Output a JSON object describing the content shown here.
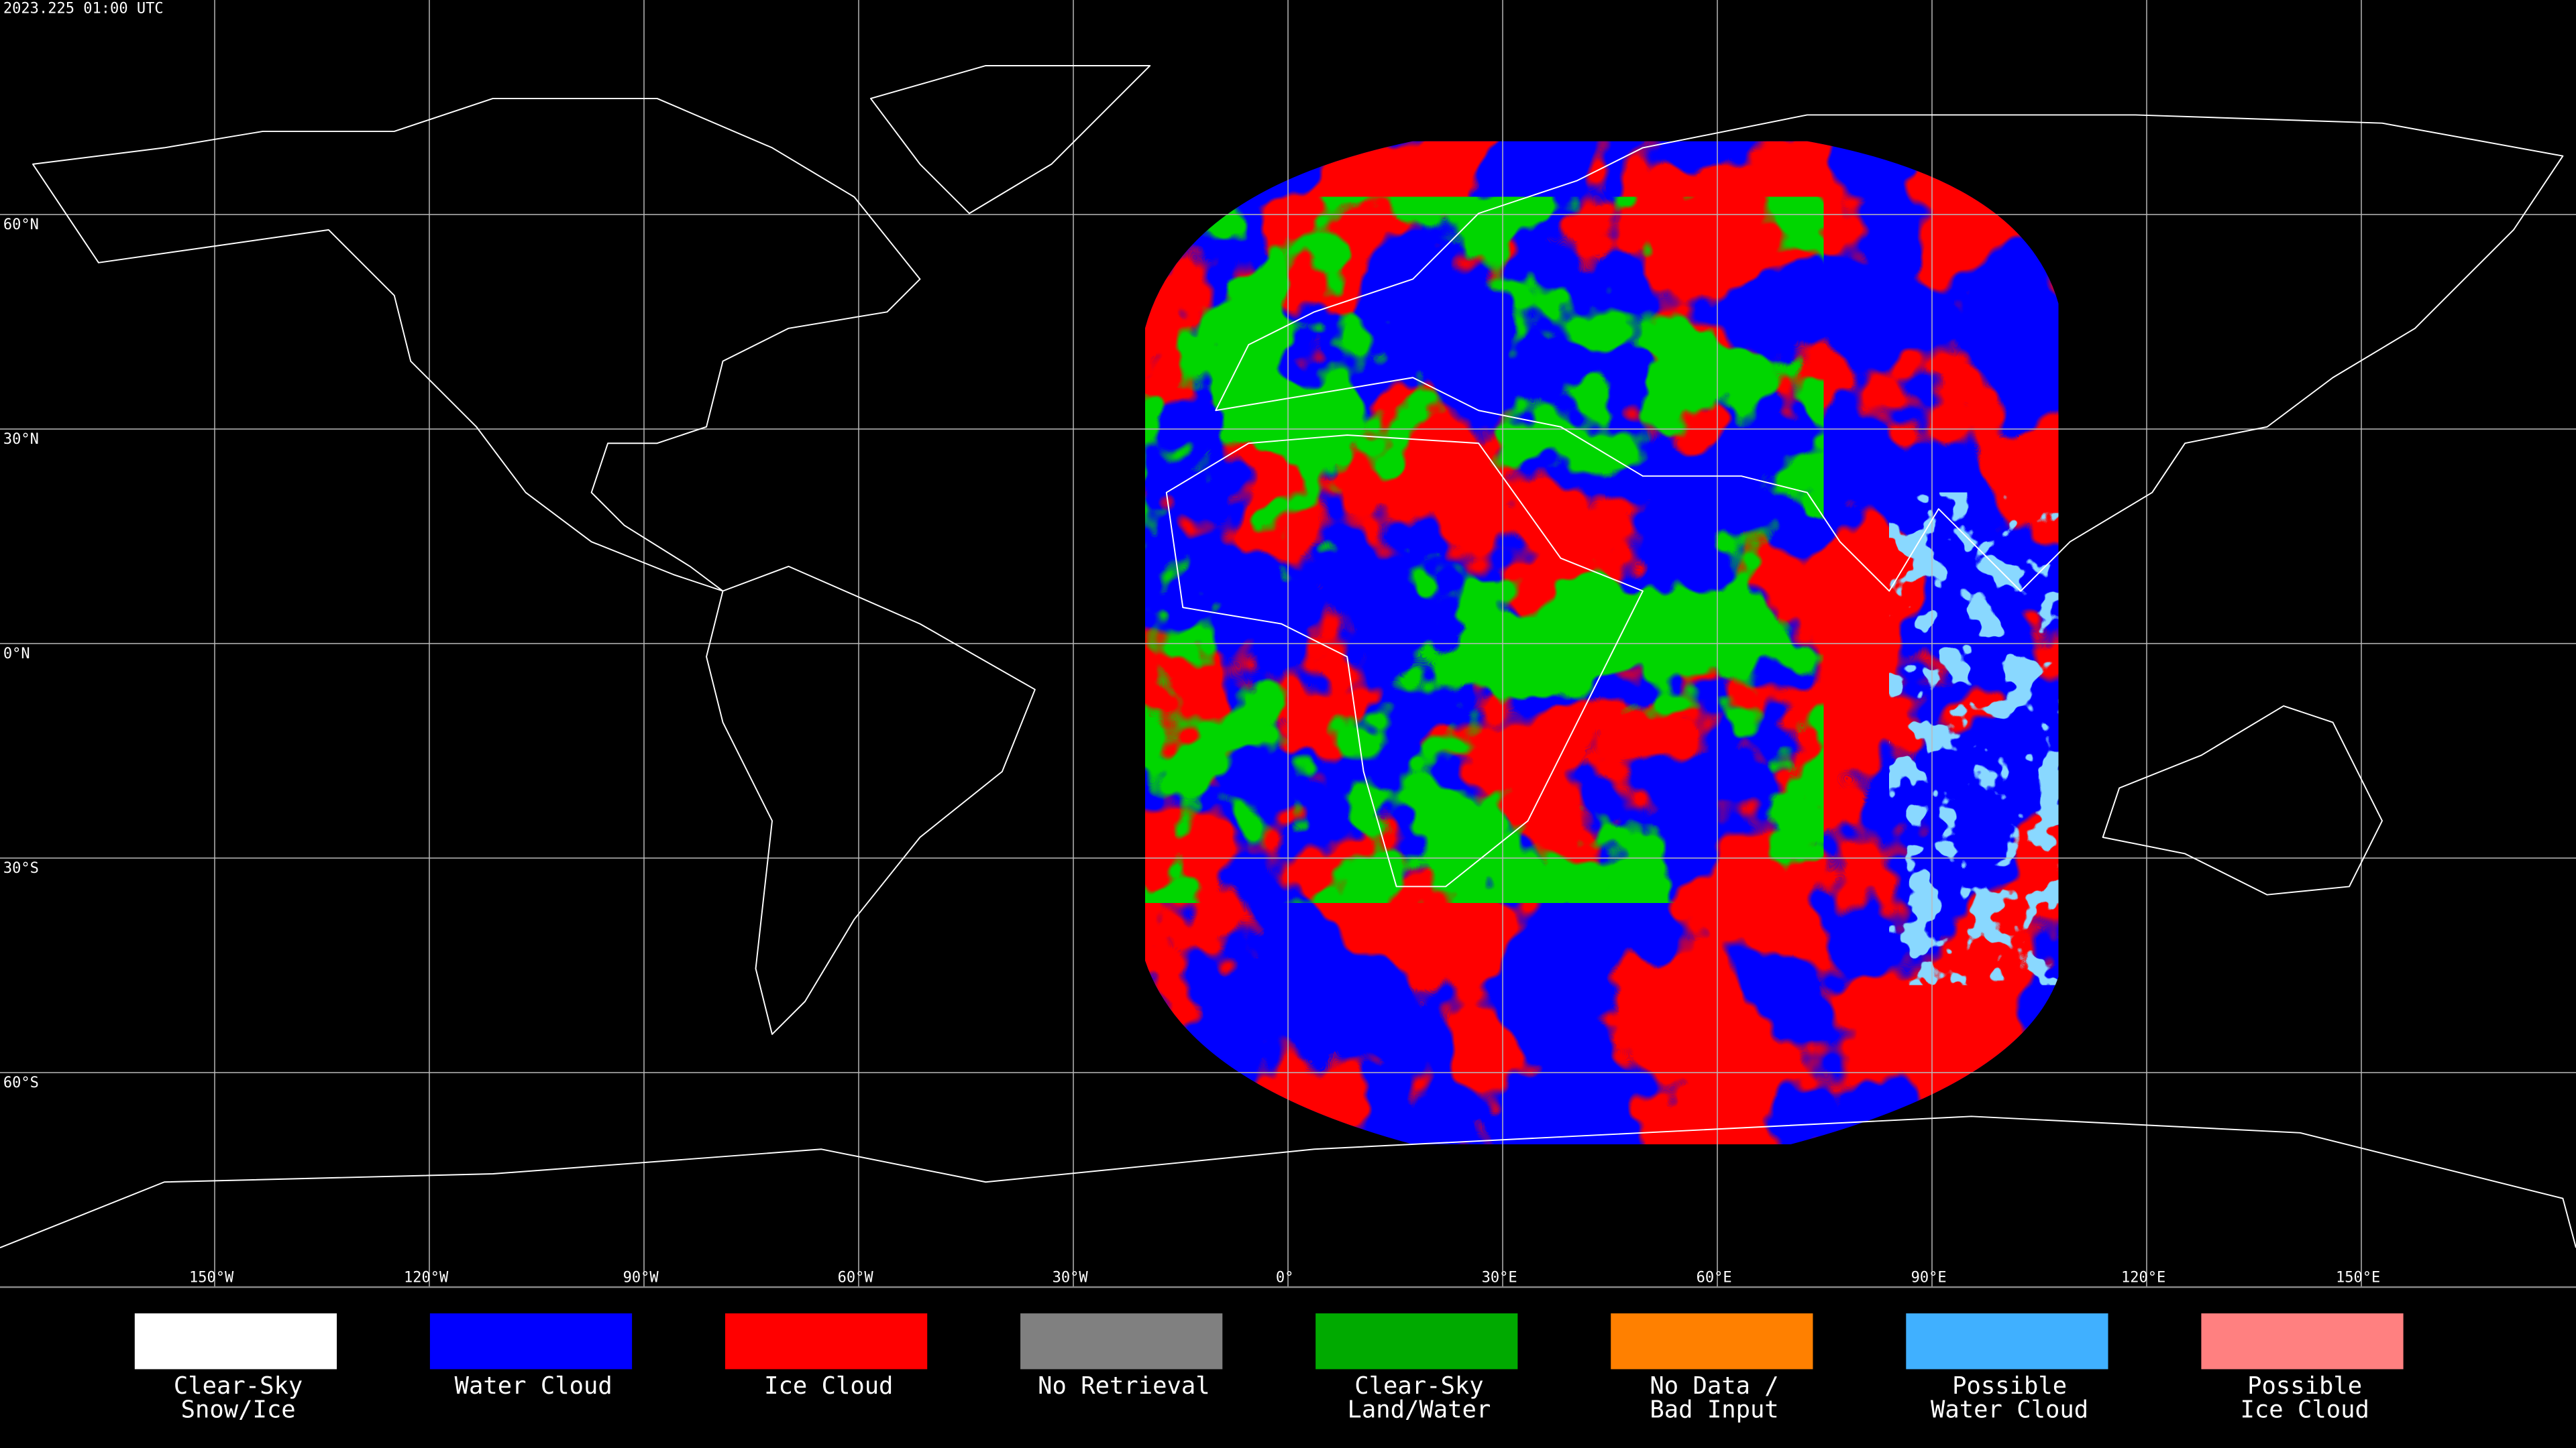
{
  "timestamp": "2023.225 01:00 UTC",
  "grid": {
    "latitudes": [
      {
        "value": 60,
        "label": "60°N"
      },
      {
        "value": 30,
        "label": "30°N"
      },
      {
        "value": 0,
        "label": "0°N"
      },
      {
        "value": -30,
        "label": "30°S"
      },
      {
        "value": -60,
        "label": "60°S"
      }
    ],
    "longitudes": [
      {
        "value": -150,
        "label": "150°W"
      },
      {
        "value": -120,
        "label": "120°W"
      },
      {
        "value": -90,
        "label": "90°W"
      },
      {
        "value": -60,
        "label": "60°W"
      },
      {
        "value": -30,
        "label": "30°W"
      },
      {
        "value": 0,
        "label": "0°"
      },
      {
        "value": 30,
        "label": "30°E"
      },
      {
        "value": 60,
        "label": "60°E"
      },
      {
        "value": 90,
        "label": "90°E"
      },
      {
        "value": 120,
        "label": "120°E"
      },
      {
        "value": 150,
        "label": "150°E"
      }
    ]
  },
  "legend": [
    {
      "color": "#ffffff",
      "label": [
        "Clear-Sky",
        "Snow/Ice"
      ]
    },
    {
      "color": "#0000ff",
      "label": [
        "Water Cloud"
      ]
    },
    {
      "color": "#ff0000",
      "label": [
        "Ice Cloud"
      ]
    },
    {
      "color": "#808080",
      "label": [
        "No Retrieval"
      ]
    },
    {
      "color": "#00aa00",
      "label": [
        "Clear-Sky",
        "Land/Water"
      ]
    },
    {
      "color": "#ff8000",
      "label": [
        "No Data /",
        "Bad Input"
      ]
    },
    {
      "color": "#40b0ff",
      "label": [
        "Possible",
        "Water Cloud"
      ]
    },
    {
      "color": "#ff8080",
      "label": [
        "Possible",
        "Ice Cloud"
      ]
    }
  ]
}
